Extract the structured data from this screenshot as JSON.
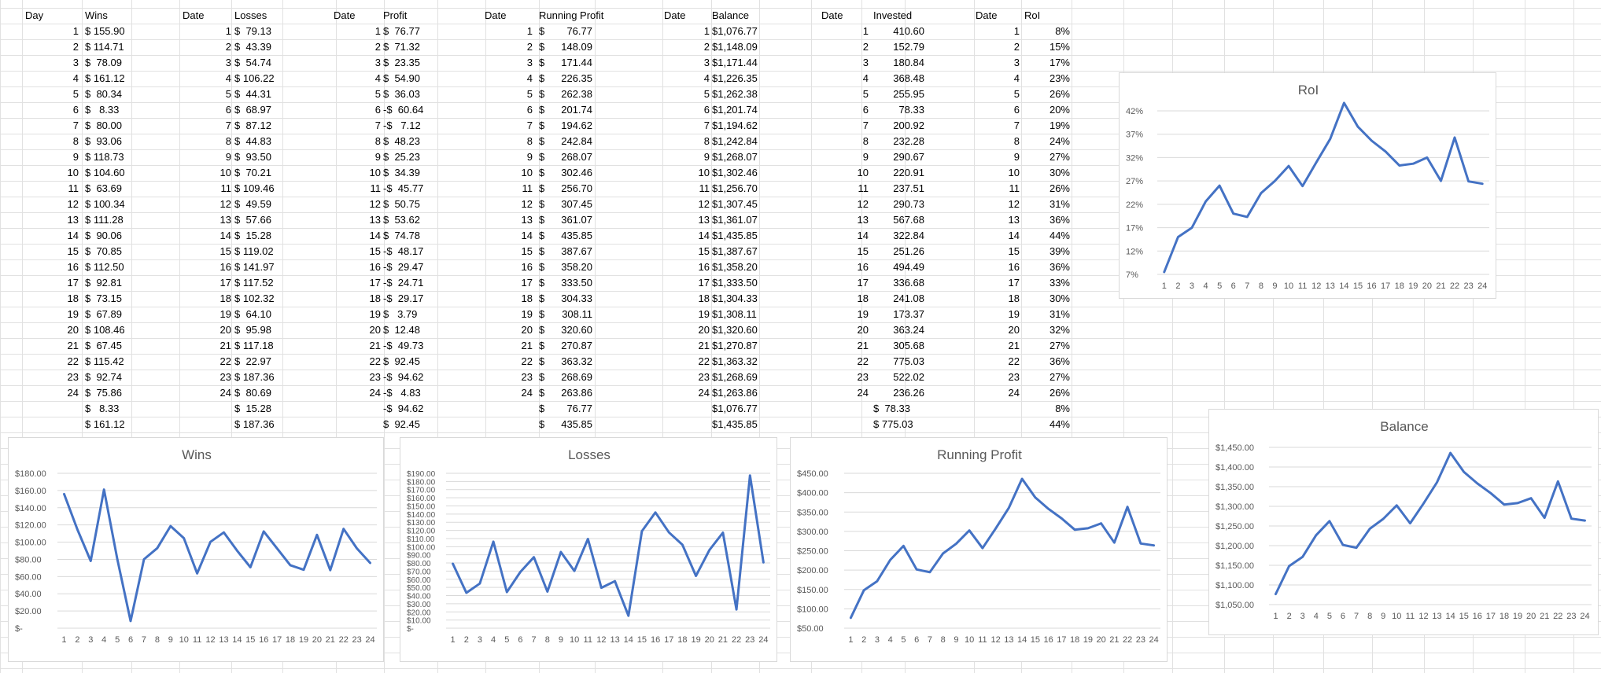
{
  "accent_color": "#4472c4",
  "headers": {
    "wins": [
      "Day",
      "Wins"
    ],
    "losses": [
      "Date",
      "Losses"
    ],
    "profit": [
      "Date",
      "Profit"
    ],
    "running": [
      "Date",
      "Running Profit"
    ],
    "balance": [
      "Date",
      "Balance"
    ],
    "invested": [
      "Date",
      "Invested"
    ],
    "roi": [
      "Date",
      "RoI"
    ]
  },
  "rows": {
    "wins": [
      "$ 155.90",
      "$ 114.71",
      "$  78.09",
      "$ 161.12",
      "$  80.34",
      "$   8.33",
      "$  80.00",
      "$  93.06",
      "$ 118.73",
      "$ 104.60",
      "$  63.69",
      "$ 100.34",
      "$ 111.28",
      "$  90.06",
      "$  70.85",
      "$ 112.50",
      "$  92.81",
      "$  73.15",
      "$  67.89",
      "$ 108.46",
      "$  67.45",
      "$ 115.42",
      "$  92.74",
      "$  75.86"
    ],
    "losses": [
      "$  79.13",
      "$  43.39",
      "$  54.74",
      "$ 106.22",
      "$  44.31",
      "$  68.97",
      "$  87.12",
      "$  44.83",
      "$  93.50",
      "$  70.21",
      "$ 109.46",
      "$  49.59",
      "$  57.66",
      "$  15.28",
      "$ 119.02",
      "$ 141.97",
      "$ 117.52",
      "$ 102.32",
      "$  64.10",
      "$  95.98",
      "$ 117.18",
      "$  22.97",
      "$ 187.36",
      "$  80.69"
    ],
    "profit": [
      "$  76.77",
      "$  71.32",
      "$  23.35",
      "$  54.90",
      "$  36.03",
      "-$  60.64",
      "-$   7.12",
      "$  48.23",
      "$  25.23",
      "$  34.39",
      "-$  45.77",
      "$  50.75",
      "$  53.62",
      "$  74.78",
      "-$  48.17",
      "-$  29.47",
      "-$  24.71",
      "-$  29.17",
      "$   3.79",
      "$  12.48",
      "-$  49.73",
      "$  92.45",
      "-$  94.62",
      "-$   4.83"
    ],
    "running": [
      "76.77",
      "148.09",
      "171.44",
      "226.35",
      "262.38",
      "201.74",
      "194.62",
      "242.84",
      "268.07",
      "302.46",
      "256.70",
      "307.45",
      "361.07",
      "435.85",
      "387.67",
      "358.20",
      "333.50",
      "304.33",
      "308.11",
      "320.60",
      "270.87",
      "363.32",
      "268.69",
      "263.86"
    ],
    "balance": [
      "$1,076.77",
      "$1,148.09",
      "$1,171.44",
      "$1,226.35",
      "$1,262.38",
      "$1,201.74",
      "$1,194.62",
      "$1,242.84",
      "$1,268.07",
      "$1,302.46",
      "$1,256.70",
      "$1,307.45",
      "$1,361.07",
      "$1,435.85",
      "$1,387.67",
      "$1,358.20",
      "$1,333.50",
      "$1,304.33",
      "$1,308.11",
      "$1,320.60",
      "$1,270.87",
      "$1,363.32",
      "$1,268.69",
      "$1,263.86"
    ],
    "invested": [
      "410.60",
      "152.79",
      "180.84",
      "368.48",
      "255.95",
      "78.33",
      "200.92",
      "232.28",
      "290.67",
      "220.91",
      "237.51",
      "290.73",
      "567.68",
      "322.84",
      "251.26",
      "494.49",
      "336.68",
      "241.08",
      "173.37",
      "363.24",
      "305.68",
      "775.03",
      "522.02",
      "236.26"
    ],
    "roi": [
      "8%",
      "15%",
      "17%",
      "23%",
      "26%",
      "20%",
      "19%",
      "24%",
      "27%",
      "30%",
      "26%",
      "31%",
      "36%",
      "44%",
      "39%",
      "36%",
      "33%",
      "30%",
      "31%",
      "32%",
      "27%",
      "36%",
      "27%",
      "26%"
    ]
  },
  "summary": {
    "wins_min": "$   8.33",
    "wins_max": "$ 161.12",
    "losses_min": "$  15.28",
    "losses_max": "$ 187.36",
    "profit_min": "-$  94.62",
    "profit_max": "$  92.45",
    "running_min": "76.77",
    "running_max": "435.85",
    "balance_min": "$1,076.77",
    "balance_max": "$1,435.85",
    "invested_min": "$  78.33",
    "invested_max": "$ 775.03",
    "roi_min": "8%",
    "roi_max": "44%"
  },
  "chart_data": [
    {
      "id": "wins",
      "type": "line",
      "title": "Wins",
      "x": [
        1,
        2,
        3,
        4,
        5,
        6,
        7,
        8,
        9,
        10,
        11,
        12,
        13,
        14,
        15,
        16,
        17,
        18,
        19,
        20,
        21,
        22,
        23,
        24
      ],
      "values": [
        155.9,
        114.71,
        78.09,
        161.12,
        80.34,
        8.33,
        80.0,
        93.06,
        118.73,
        104.6,
        63.69,
        100.34,
        111.28,
        90.06,
        70.85,
        112.5,
        92.81,
        73.15,
        67.89,
        108.46,
        67.45,
        115.42,
        92.74,
        75.86
      ],
      "ylim": [
        0,
        180
      ],
      "ytick_labels": [
        "$-",
        "$20.00",
        "$40.00",
        "$60.00",
        "$80.00",
        "$100.00",
        "$120.00",
        "$140.00",
        "$160.00",
        "$180.00"
      ],
      "ytick_values": [
        0,
        20,
        40,
        60,
        80,
        100,
        120,
        140,
        160,
        180
      ]
    },
    {
      "id": "losses",
      "type": "line",
      "title": "Losses",
      "x": [
        1,
        2,
        3,
        4,
        5,
        6,
        7,
        8,
        9,
        10,
        11,
        12,
        13,
        14,
        15,
        16,
        17,
        18,
        19,
        20,
        21,
        22,
        23,
        24
      ],
      "values": [
        79.13,
        43.39,
        54.74,
        106.22,
        44.31,
        68.97,
        87.12,
        44.83,
        93.5,
        70.21,
        109.46,
        49.59,
        57.66,
        15.28,
        119.02,
        141.97,
        117.52,
        102.32,
        64.1,
        95.98,
        117.18,
        22.97,
        187.36,
        80.69
      ],
      "ylim": [
        0,
        190
      ],
      "ytick_labels": [
        "$-",
        "$10.00",
        "$20.00",
        "$30.00",
        "$40.00",
        "$50.00",
        "$60.00",
        "$70.00",
        "$80.00",
        "$90.00",
        "$100.00",
        "$110.00",
        "$120.00",
        "$130.00",
        "$140.00",
        "$150.00",
        "$160.00",
        "$170.00",
        "$180.00",
        "$190.00"
      ],
      "ytick_values": [
        0,
        10,
        20,
        30,
        40,
        50,
        60,
        70,
        80,
        90,
        100,
        110,
        120,
        130,
        140,
        150,
        160,
        170,
        180,
        190
      ]
    },
    {
      "id": "running",
      "type": "line",
      "title": "Running Profit",
      "x": [
        1,
        2,
        3,
        4,
        5,
        6,
        7,
        8,
        9,
        10,
        11,
        12,
        13,
        14,
        15,
        16,
        17,
        18,
        19,
        20,
        21,
        22,
        23,
        24
      ],
      "values": [
        76.77,
        148.09,
        171.44,
        226.35,
        262.38,
        201.74,
        194.62,
        242.84,
        268.07,
        302.46,
        256.7,
        307.45,
        361.07,
        435.85,
        387.67,
        358.2,
        333.5,
        304.33,
        308.11,
        320.6,
        270.87,
        363.32,
        268.69,
        263.86
      ],
      "ylim": [
        50,
        450
      ],
      "ytick_labels": [
        "$50.00",
        "$100.00",
        "$150.00",
        "$200.00",
        "$250.00",
        "$300.00",
        "$350.00",
        "$400.00",
        "$450.00"
      ],
      "ytick_values": [
        50,
        100,
        150,
        200,
        250,
        300,
        350,
        400,
        450
      ]
    },
    {
      "id": "balance",
      "type": "line",
      "title": "Balance",
      "x": [
        1,
        2,
        3,
        4,
        5,
        6,
        7,
        8,
        9,
        10,
        11,
        12,
        13,
        14,
        15,
        16,
        17,
        18,
        19,
        20,
        21,
        22,
        23,
        24
      ],
      "values": [
        1076.77,
        1148.09,
        1171.44,
        1226.35,
        1262.38,
        1201.74,
        1194.62,
        1242.84,
        1268.07,
        1302.46,
        1256.7,
        1307.45,
        1361.07,
        1435.85,
        1387.67,
        1358.2,
        1333.5,
        1304.33,
        1308.11,
        1320.6,
        1270.87,
        1363.32,
        1268.69,
        1263.86
      ],
      "ylim": [
        1050,
        1450
      ],
      "ytick_labels": [
        "$1,050.00",
        "$1,100.00",
        "$1,150.00",
        "$1,200.00",
        "$1,250.00",
        "$1,300.00",
        "$1,350.00",
        "$1,400.00",
        "$1,450.00"
      ],
      "ytick_values": [
        1050,
        1100,
        1150,
        1200,
        1250,
        1300,
        1350,
        1400,
        1450
      ]
    },
    {
      "id": "roi",
      "type": "line",
      "title": "RoI",
      "x": [
        1,
        2,
        3,
        4,
        5,
        6,
        7,
        8,
        9,
        10,
        11,
        12,
        13,
        14,
        15,
        16,
        17,
        18,
        19,
        20,
        21,
        22,
        23,
        24
      ],
      "values": [
        7.5,
        15,
        17,
        22.6,
        26,
        20,
        19.3,
        24.4,
        27,
        30.2,
        25.9,
        31,
        36,
        43.7,
        38.6,
        35.6,
        33.3,
        30.3,
        30.7,
        32,
        27,
        36.3,
        26.9,
        26.4
      ],
      "ylim": [
        7,
        42
      ],
      "ytick_labels": [
        "7%",
        "12%",
        "17%",
        "22%",
        "27%",
        "32%",
        "37%",
        "42%"
      ],
      "ytick_values": [
        7,
        12,
        17,
        22,
        27,
        32,
        37,
        42
      ]
    }
  ]
}
